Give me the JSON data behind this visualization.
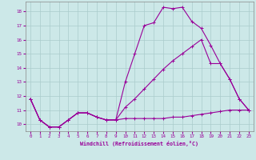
{
  "title": "",
  "xlabel": "Windchill (Refroidissement éolien,°C)",
  "background_color": "#cce8e8",
  "grid_color": "#aacccc",
  "line_color": "#990099",
  "xlim": [
    -0.5,
    23.5
  ],
  "ylim": [
    9.5,
    18.7
  ],
  "yticks": [
    10,
    11,
    12,
    13,
    14,
    15,
    16,
    17,
    18
  ],
  "xticks": [
    0,
    1,
    2,
    3,
    4,
    5,
    6,
    7,
    8,
    9,
    10,
    11,
    12,
    13,
    14,
    15,
    16,
    17,
    18,
    19,
    20,
    21,
    22,
    23
  ],
  "line1_x": [
    0,
    1,
    2,
    3,
    4,
    5,
    6,
    7,
    8,
    9,
    10,
    11,
    12,
    13,
    14,
    15,
    16,
    17,
    18,
    19,
    20,
    21,
    22,
    23
  ],
  "line1_y": [
    11.8,
    10.3,
    9.8,
    9.8,
    10.3,
    10.8,
    10.8,
    10.5,
    10.3,
    10.3,
    10.4,
    10.4,
    10.4,
    10.4,
    10.4,
    10.5,
    10.5,
    10.6,
    10.7,
    10.8,
    10.9,
    11.0,
    11.0,
    11.0
  ],
  "line2_x": [
    0,
    1,
    2,
    3,
    4,
    5,
    6,
    7,
    8,
    9,
    10,
    11,
    12,
    13,
    14,
    15,
    16,
    17,
    18,
    19,
    20,
    21,
    22,
    23
  ],
  "line2_y": [
    11.8,
    10.3,
    9.8,
    9.8,
    10.3,
    10.8,
    10.8,
    10.5,
    10.3,
    10.3,
    13.0,
    15.0,
    17.0,
    17.2,
    18.3,
    18.2,
    18.3,
    17.3,
    16.8,
    15.6,
    14.3,
    13.2,
    11.8,
    11.0
  ],
  "line3_x": [
    0,
    1,
    2,
    3,
    4,
    5,
    6,
    7,
    8,
    9,
    10,
    11,
    12,
    13,
    14,
    15,
    16,
    17,
    18,
    19,
    20,
    21,
    22,
    23
  ],
  "line3_y": [
    11.8,
    10.3,
    9.8,
    9.8,
    10.3,
    10.8,
    10.8,
    10.5,
    10.3,
    10.3,
    11.2,
    11.8,
    12.5,
    13.2,
    13.9,
    14.5,
    15.0,
    15.5,
    16.0,
    14.3,
    14.3,
    13.2,
    11.8,
    11.0
  ]
}
